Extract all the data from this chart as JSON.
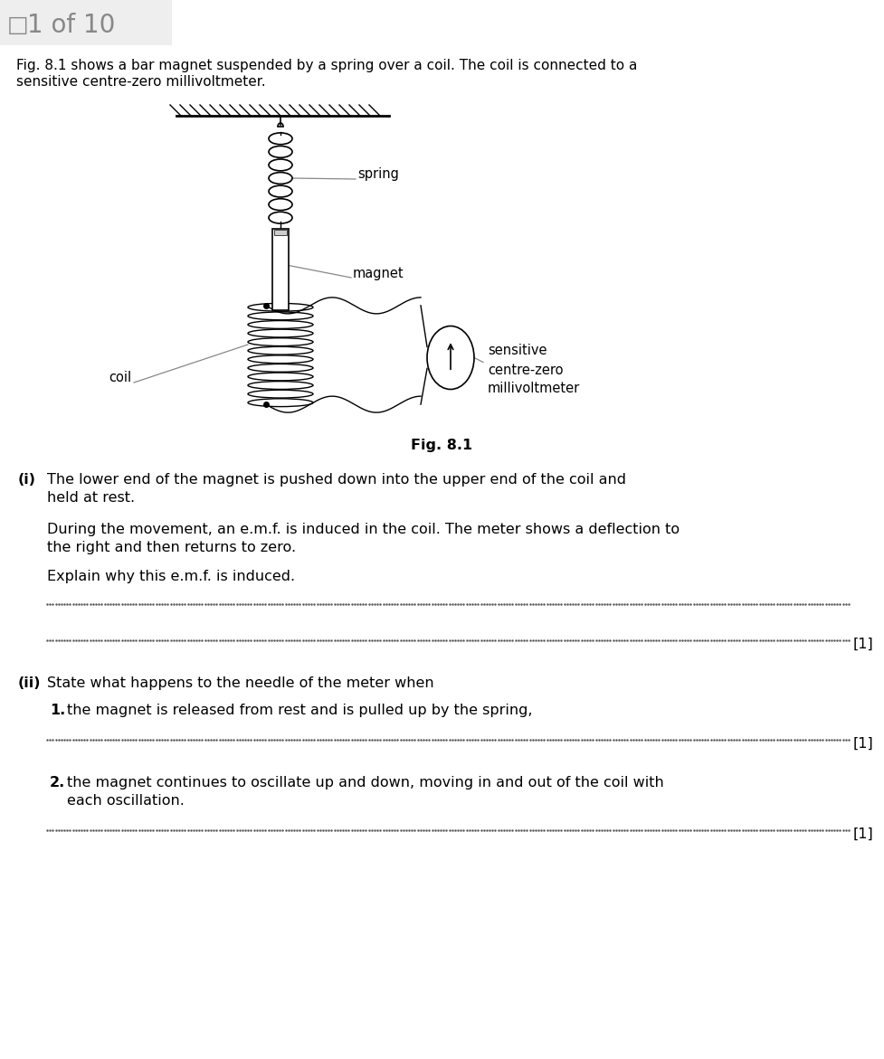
{
  "page_label": "1 of 10",
  "header_line1": "Fig. 8.1 shows a bar magnet suspended by a spring over a coil. The coil is connected to a",
  "header_line2": "sensitive centre-zero millivoltmeter.",
  "fig_caption": "Fig. 8.1",
  "q_i_label": "(i)",
  "q_i_line1": "The lower end of the magnet is pushed down into the upper end of the coil and",
  "q_i_line2": "held at rest.",
  "q_i_sub1": "During the movement, an e.m.f. is induced in the coil. The meter shows a deflection to",
  "q_i_sub2": "the right and then returns to zero.",
  "q_i_ask": "Explain why this e.m.f. is induced.",
  "q_ii_label": "(ii)",
  "q_ii_text": "State what happens to the needle of the meter when",
  "q_ii_1_label": "1.",
  "q_ii_1_text": "the magnet is released from rest and is pulled up by the spring,",
  "q_ii_2_label": "2.",
  "q_ii_2_line1": "the magnet continues to oscillate up and down, moving in and out of the coil with",
  "q_ii_2_line2": "each oscillation.",
  "mark": "[1]",
  "bg_color": "#ffffff",
  "text_color": "#000000",
  "page_label_color": "#888888",
  "page_bg_color": "#eeeeee",
  "diagram_color": "#000000",
  "label_line_color": "#888888"
}
